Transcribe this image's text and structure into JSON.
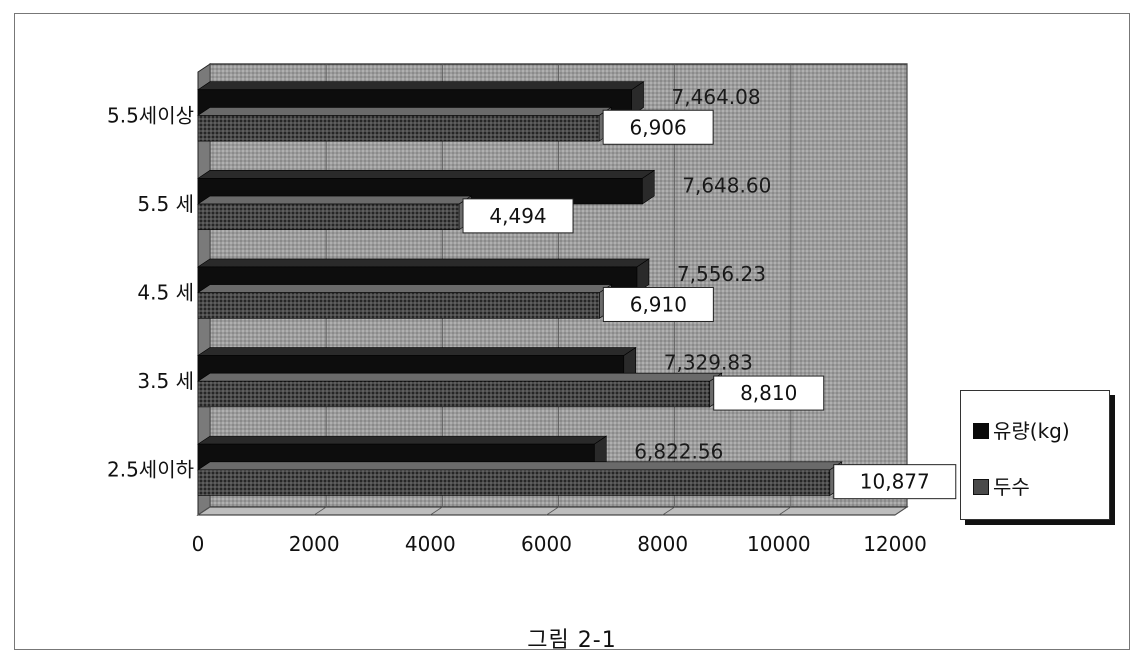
{
  "caption": "그림 2-1",
  "colors": {
    "series_0": "#0a0a0a",
    "series_1": "#3a3a3a",
    "wall": "#9a9a9a",
    "floor": "#bdbdbd"
  },
  "chart_data": {
    "type": "bar",
    "orientation": "horizontal",
    "three_d": true,
    "categories": [
      "5.5세이상",
      "5.5 세",
      "4.5 세",
      "3.5 세",
      "2.5세이하"
    ],
    "series": [
      {
        "name": "유량(kg)",
        "values": [
          7464.08,
          7648.6,
          7556.23,
          7329.83,
          6822.56
        ],
        "labels": [
          "7,464.08",
          "7,648.60",
          "7,556.23",
          "7,329.83",
          "6,822.56"
        ]
      },
      {
        "name": "두수",
        "values": [
          6906,
          4494,
          6910,
          8810,
          10877
        ],
        "labels": [
          "6,906",
          "4,494",
          "6,910",
          "8,810",
          "10,877"
        ]
      }
    ],
    "xlim": [
      0,
      12000
    ],
    "xticks": [
      "0",
      "2000",
      "4000",
      "6000",
      "8000",
      "10000",
      "12000"
    ],
    "grid": true,
    "legend_position": "right"
  }
}
